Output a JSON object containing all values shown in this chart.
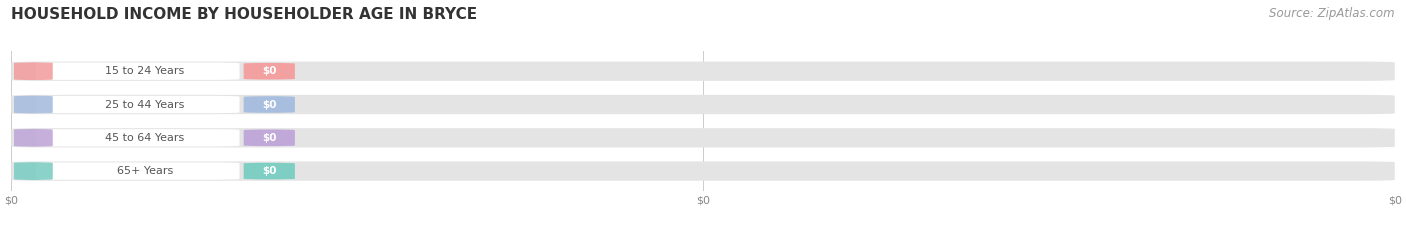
{
  "title": "HOUSEHOLD INCOME BY HOUSEHOLDER AGE IN BRYCE",
  "source": "Source: ZipAtlas.com",
  "categories": [
    "15 to 24 Years",
    "25 to 44 Years",
    "45 to 64 Years",
    "65+ Years"
  ],
  "values": [
    0,
    0,
    0,
    0
  ],
  "bar_colors": [
    "#f2a0a0",
    "#a8bede",
    "#c0a8d8",
    "#7ecec4"
  ],
  "background_color": "#ffffff",
  "bar_bg_color": "#e8e8e8",
  "white_label_color": "#f5f5f5",
  "title_fontsize": 11,
  "source_fontsize": 8.5,
  "bar_label_value": "$0",
  "xtick_labels": [
    "$0",
    "$0"
  ],
  "xtick_positions": [
    0.0,
    1.0
  ]
}
